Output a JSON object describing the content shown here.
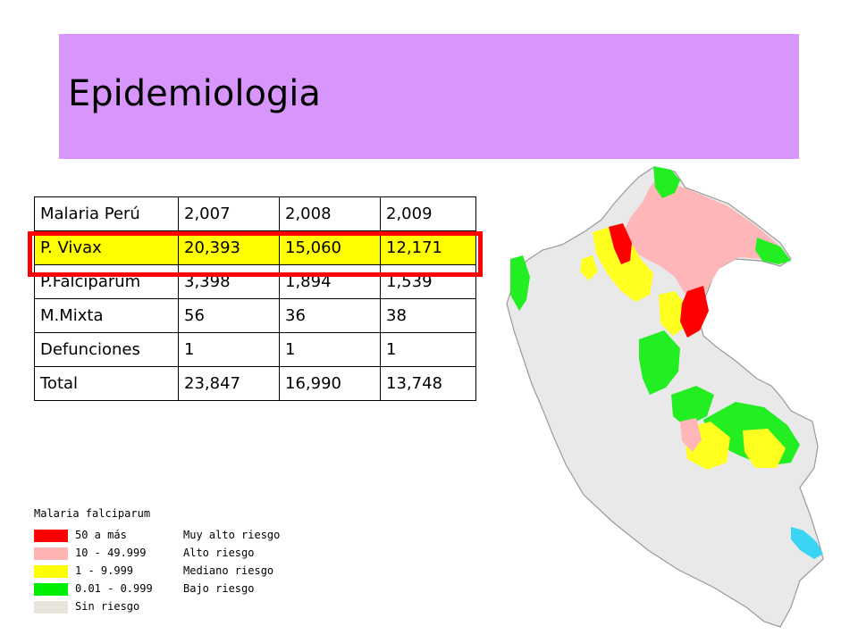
{
  "title": "Epidemiologia",
  "colors": {
    "banner": "#d896fc",
    "highlight_row": "#ffff00",
    "highlight_border": "#ff0000"
  },
  "table": {
    "header": [
      "Malaria Perú",
      "2,007",
      "2,008",
      "2,009"
    ],
    "rows": [
      [
        "P. Vivax",
        "20,393",
        "15,060",
        "12,171"
      ],
      [
        "P.Falciparum",
        "3,398",
        "1,894",
        "1,539"
      ],
      [
        "M.Mixta",
        "56",
        "36",
        "38"
      ],
      [
        "Defunciones",
        "1",
        "1",
        "1"
      ],
      [
        "Total",
        "23,847",
        "16,990",
        "13,748"
      ]
    ]
  },
  "legend": {
    "title": "Malaria falciparum",
    "items": [
      {
        "range": "50 a más",
        "desc": "Muy alto riesgo",
        "color": "#ff0000"
      },
      {
        "range": "10 - 49.999",
        "desc": "Alto riesgo",
        "color": "#ffb3b3"
      },
      {
        "range": "1 - 9.999",
        "desc": "Mediano riesgo",
        "color": "#ffff00"
      },
      {
        "range": "0.01 - 0.999",
        "desc": "Bajo riesgo",
        "color": "#00ee00"
      },
      {
        "range": "Sin riesgo",
        "desc": "",
        "color": "#e8e4dc"
      }
    ]
  },
  "map": {
    "region": "peru-map",
    "lake_color": "#3cd4f4"
  }
}
